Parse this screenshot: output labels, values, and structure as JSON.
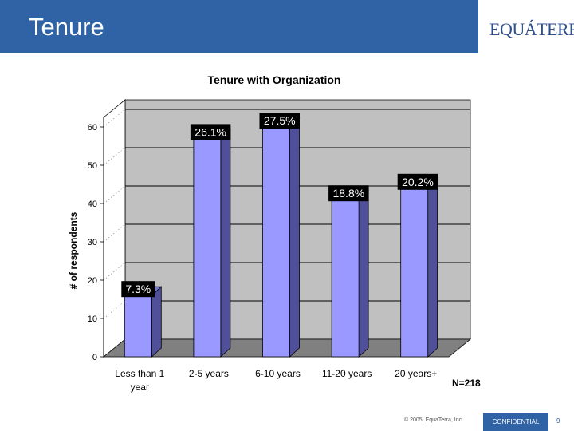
{
  "slide": {
    "title": "Tenure",
    "logo": "EQUÁTERRA"
  },
  "footer": {
    "copyright": "© 2005, EquaTerra, Inc.",
    "confidential": "CONFIDENTIAL",
    "page": "9"
  },
  "colors": {
    "header": "#2f63a5",
    "bar_front": "#9999ff",
    "bar_side": "#50509a",
    "wall": "#c0c0c0",
    "floor": "#808080"
  },
  "chart_data": {
    "type": "bar",
    "title": "Tenure with Organization",
    "xlabel": "",
    "ylabel": "# of respondents",
    "ylim": [
      0,
      60
    ],
    "yticks": [
      0,
      10,
      20,
      30,
      40,
      50,
      60
    ],
    "categories": [
      "Less than 1 year",
      "2-5 years",
      "6-10 years",
      "11-20 years",
      "20 years+"
    ],
    "values": [
      16,
      57,
      60,
      41,
      44
    ],
    "data_labels": [
      "7.3%",
      "26.1%",
      "27.5%",
      "18.8%",
      "20.2%"
    ],
    "annotation": "N=218",
    "grid": true
  }
}
